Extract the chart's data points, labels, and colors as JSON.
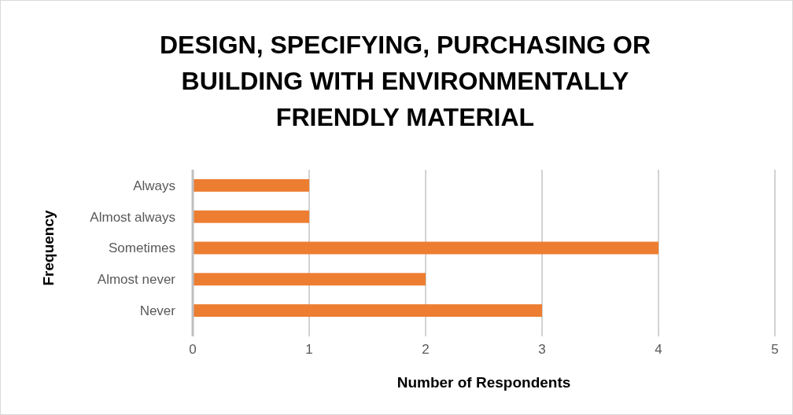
{
  "chart_data": {
    "type": "bar",
    "orientation": "horizontal",
    "title": "DESIGN, SPECIFYING, PURCHASING OR BUILDING WITH ENVIRONMENTALLY FRIENDLY MATERIAL",
    "xlabel": "Number of Respondents",
    "ylabel": "Frequency",
    "categories": [
      "Always",
      "Almost always",
      "Sometimes",
      "Almost never",
      "Never"
    ],
    "values": [
      1,
      1,
      4,
      2,
      3
    ],
    "color": "#ed7d31",
    "xlim": [
      0,
      5
    ],
    "xticks": [
      0,
      1,
      2,
      3,
      4,
      5
    ],
    "grid": "x"
  }
}
